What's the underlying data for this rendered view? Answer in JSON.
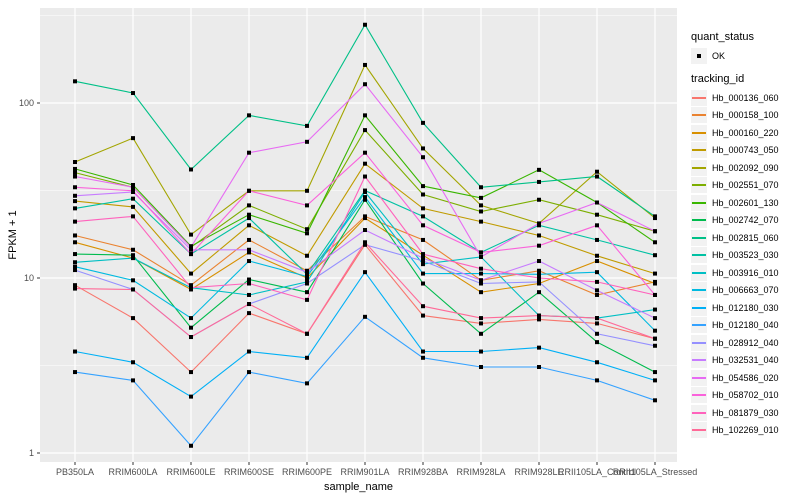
{
  "figure": {
    "background": "#FFFFFF",
    "panel_background": "#EBEBEB",
    "gridline_color": "#FFFFFF",
    "tick_color": "#333333",
    "tick_label_color": "#4D4D4D"
  },
  "axes": {
    "x_title": "sample_name",
    "y_title": "FPKM + 1",
    "y_tick_labels": [
      "1",
      "10",
      "100"
    ]
  },
  "legend": {
    "quant_status_title": "quant_status",
    "quant_status_items": [
      "OK"
    ],
    "tracking_id_title": "tracking_id"
  },
  "chart_data": {
    "type": "line",
    "title": "",
    "xlabel": "sample_name",
    "ylabel": "FPKM + 1",
    "y_scale": "log10",
    "y_ticks": [
      1,
      10,
      100
    ],
    "y_minor_gridlines": [
      3.162,
      31.62,
      316.2
    ],
    "ylim": [
      0.9,
      349
    ],
    "grid": true,
    "legend_position": "right",
    "point_marker": "filled-black-square",
    "categories": [
      "PB350LA",
      "RRIM600LA",
      "RRIM600LE",
      "RRIM600SE",
      "RRIM600PE",
      "RRIM901LA",
      "RRIM928BA",
      "RRIM928LA",
      "RRIM928LE",
      "RRII105LA_Control",
      "RRII105LA_Stressed"
    ],
    "series": [
      {
        "name": "Hb_000136_060",
        "color": "#F8766D",
        "values": [
          9.1,
          5.9,
          2.9,
          6.3,
          4.8,
          15.5,
          6.1,
          5.5,
          5.8,
          5.5,
          4.5
        ]
      },
      {
        "name": "Hb_000158_100",
        "color": "#EA8331",
        "values": [
          17.5,
          14.5,
          9.1,
          16.5,
          11,
          22.5,
          16.5,
          9.7,
          11,
          8,
          9.5
        ]
      },
      {
        "name": "Hb_000160_220",
        "color": "#D89000",
        "values": [
          16,
          13,
          8.6,
          14,
          10,
          22,
          13.5,
          8.3,
          9.3,
          12.5,
          9.3
        ]
      },
      {
        "name": "Hb_000743_050",
        "color": "#C09B00",
        "values": [
          27.5,
          25.5,
          10.6,
          20,
          13.4,
          45,
          25,
          21,
          17.5,
          13.4,
          10.6
        ]
      },
      {
        "name": "Hb_002092_090",
        "color": "#A3A500",
        "values": [
          46,
          63,
          17.7,
          31.5,
          31.5,
          165,
          55,
          26,
          20.5,
          40.5,
          22
        ]
      },
      {
        "name": "Hb_002551_070",
        "color": "#7CAE00",
        "values": [
          40,
          33,
          15,
          26,
          19,
          70,
          30,
          24,
          28,
          23,
          18.5
        ]
      },
      {
        "name": "Hb_002601_130",
        "color": "#39B600",
        "values": [
          42,
          34,
          15.2,
          23,
          18,
          85,
          33.5,
          28.7,
          41.5,
          27,
          16
        ]
      },
      {
        "name": "Hb_002742_070",
        "color": "#00BB4E",
        "values": [
          13.7,
          13.5,
          5.2,
          9.8,
          8.3,
          28,
          9.3,
          4.8,
          8.3,
          4.3,
          2.9
        ]
      },
      {
        "name": "Hb_002815_060",
        "color": "#00C087",
        "values": [
          133,
          114,
          41.7,
          85,
          74,
          280,
          77,
          33,
          35.4,
          38,
          22.5
        ]
      },
      {
        "name": "Hb_003523_030",
        "color": "#00C1A3",
        "values": [
          25,
          28.4,
          13.7,
          22,
          10.5,
          31.6,
          22.5,
          14,
          20,
          16.5,
          13.5
        ]
      },
      {
        "name": "Hb_003916_010",
        "color": "#00BFC4",
        "values": [
          12.3,
          13,
          8.8,
          8,
          9.5,
          31,
          12,
          13.2,
          6.1,
          5.9,
          6.6
        ]
      },
      {
        "name": "Hb_006663_070",
        "color": "#00BAE0",
        "values": [
          11.6,
          9.7,
          5.9,
          12.5,
          10.2,
          29,
          10.6,
          10.6,
          10.5,
          10.8,
          5
        ]
      },
      {
        "name": "Hb_012180_030",
        "color": "#00B0F6",
        "values": [
          3.8,
          3.3,
          2.1,
          3.8,
          3.5,
          10.8,
          3.8,
          3.8,
          4,
          3.3,
          2.6
        ]
      },
      {
        "name": "Hb_012180_040",
        "color": "#35A2FF",
        "values": [
          2.9,
          2.6,
          1.1,
          2.9,
          2.5,
          6,
          3.5,
          3.1,
          3.1,
          2.6,
          2
        ]
      },
      {
        "name": "Hb_028912_040",
        "color": "#9590FF",
        "values": [
          11.1,
          8.6,
          4.6,
          7.1,
          9.3,
          15.5,
          12.5,
          9.3,
          9.5,
          4.8,
          4.1
        ]
      },
      {
        "name": "Hb_032531_040",
        "color": "#C77CFF",
        "values": [
          29.5,
          31,
          14.5,
          14.5,
          10.8,
          18.8,
          13,
          9.7,
          12.5,
          8.5,
          5.9
        ]
      },
      {
        "name": "Hb_054586_020",
        "color": "#E76BF3",
        "values": [
          38,
          33,
          15,
          52,
          60,
          128,
          49,
          13.2,
          20.5,
          27,
          18.5
        ]
      },
      {
        "name": "Hb_058702_010",
        "color": "#FA62DB",
        "values": [
          33,
          31.5,
          13.7,
          31.5,
          26,
          52,
          20,
          14,
          15.3,
          20,
          8
        ]
      },
      {
        "name": "Hb_081879_030",
        "color": "#FF62BC",
        "values": [
          21,
          22.5,
          8.8,
          9.3,
          7.5,
          38,
          13.7,
          11.3,
          10,
          9.5,
          8
        ]
      },
      {
        "name": "Hb_102269_010",
        "color": "#FF6A98",
        "values": [
          8.7,
          8.6,
          4.6,
          7.1,
          4.8,
          16,
          6.9,
          5.9,
          6.1,
          5.9,
          4.5
        ]
      }
    ]
  }
}
